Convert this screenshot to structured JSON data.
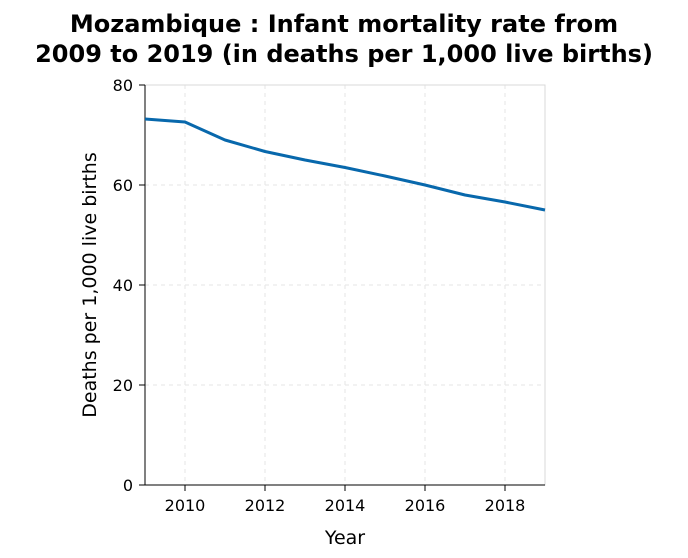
{
  "chart_data": {
    "type": "line",
    "title_lines": [
      "Mozambique : Infant mortality rate from",
      "2009 to 2019 (in deaths per 1,000 live births)"
    ],
    "xlabel": "Year",
    "ylabel": "Deaths per 1,000 live births",
    "xlim": [
      2009,
      2019
    ],
    "ylim": [
      0,
      80
    ],
    "xticks": [
      2010,
      2012,
      2014,
      2016,
      2018
    ],
    "yticks": [
      0,
      20,
      40,
      60,
      80
    ],
    "grid": true,
    "series": [
      {
        "color": "#0868ac",
        "x": [
          2009,
          2010,
          2011,
          2012,
          2013,
          2014,
          2015,
          2016,
          2017,
          2018,
          2019
        ],
        "y": [
          73.2,
          72.6,
          69.0,
          66.7,
          65.0,
          63.5,
          61.8,
          60.0,
          58.0,
          56.6,
          55.0
        ]
      }
    ]
  }
}
